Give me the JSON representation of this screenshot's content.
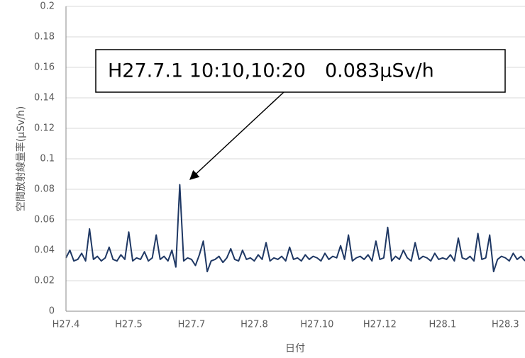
{
  "chart_data": {
    "type": "line",
    "y_label": "空間放射線量率(μSv/h)",
    "x_label": "日付",
    "annotation": "H27.7.1 10:10,10:20　0.083μSv/h",
    "ylim": [
      0,
      0.2
    ],
    "yticks": [
      0,
      0.02,
      0.04,
      0.06,
      0.08,
      0.1,
      0.12,
      0.14,
      0.16,
      0.18,
      0.2
    ],
    "grid": true,
    "color": "#1f3864",
    "categories": [
      "H27.4",
      null,
      null,
      null,
      null,
      null,
      null,
      null,
      null,
      null,
      null,
      null,
      null,
      null,
      null,
      null,
      "H27.5",
      null,
      null,
      null,
      null,
      null,
      null,
      null,
      null,
      null,
      null,
      null,
      null,
      null,
      null,
      null,
      "H27.7",
      null,
      null,
      null,
      null,
      null,
      null,
      null,
      null,
      null,
      null,
      null,
      null,
      null,
      null,
      null,
      "H27.8",
      null,
      null,
      null,
      null,
      null,
      null,
      null,
      null,
      null,
      null,
      null,
      null,
      null,
      null,
      null,
      "H27.10",
      null,
      null,
      null,
      null,
      null,
      null,
      null,
      null,
      null,
      null,
      null,
      null,
      null,
      null,
      null,
      "H27.12",
      null,
      null,
      null,
      null,
      null,
      null,
      null,
      null,
      null,
      null,
      null,
      null,
      null,
      null,
      null,
      "H28.1",
      null,
      null,
      null,
      null,
      null,
      null,
      null,
      null,
      null,
      null,
      null,
      null,
      null,
      null,
      null,
      "H28.3",
      null,
      null,
      null,
      null,
      null
    ],
    "values": [
      0.035,
      0.04,
      0.033,
      0.034,
      0.038,
      0.033,
      0.054,
      0.034,
      0.036,
      0.033,
      0.035,
      0.042,
      0.034,
      0.033,
      0.037,
      0.034,
      0.052,
      0.033,
      0.035,
      0.034,
      0.039,
      0.033,
      0.035,
      0.05,
      0.034,
      0.036,
      0.033,
      0.04,
      0.029,
      0.083,
      0.033,
      0.035,
      0.034,
      0.03,
      0.037,
      0.046,
      0.026,
      0.033,
      0.034,
      0.036,
      0.032,
      0.035,
      0.041,
      0.034,
      0.033,
      0.04,
      0.034,
      0.035,
      0.033,
      0.037,
      0.034,
      0.045,
      0.033,
      0.035,
      0.034,
      0.036,
      0.033,
      0.042,
      0.034,
      0.035,
      0.033,
      0.037,
      0.034,
      0.036,
      0.035,
      0.033,
      0.038,
      0.034,
      0.036,
      0.035,
      0.043,
      0.034,
      0.05,
      0.033,
      0.035,
      0.036,
      0.034,
      0.037,
      0.033,
      0.046,
      0.034,
      0.035,
      0.055,
      0.033,
      0.036,
      0.034,
      0.04,
      0.035,
      0.033,
      0.045,
      0.034,
      0.036,
      0.035,
      0.033,
      0.038,
      0.034,
      0.035,
      0.034,
      0.037,
      0.033,
      0.048,
      0.035,
      0.034,
      0.036,
      0.033,
      0.051,
      0.034,
      0.035,
      0.05,
      0.026,
      0.034,
      0.036,
      0.035,
      0.033,
      0.038,
      0.034,
      0.036,
      0.033
    ]
  }
}
